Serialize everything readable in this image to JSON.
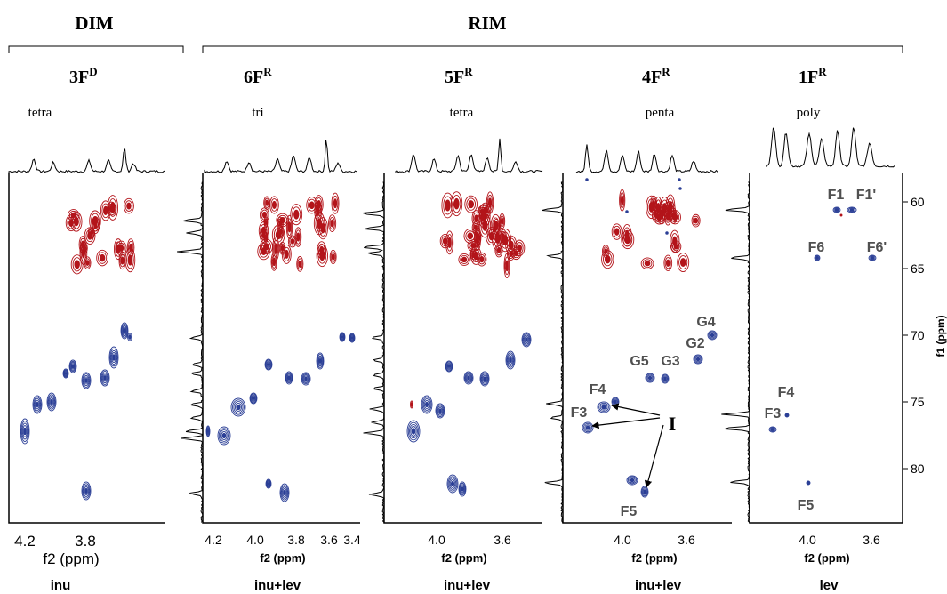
{
  "groups": {
    "dim": "DIM",
    "rim": "RIM"
  },
  "panels": [
    {
      "id": "3FD",
      "main": "3F",
      "sup": "D",
      "type": "tetra",
      "xlabel": "f2 (ppm)",
      "sample": "inu",
      "ticks": [
        "4.2",
        "3.8"
      ]
    },
    {
      "id": "6FR",
      "main": "6F",
      "sup": "R",
      "type": "tri",
      "xlabel": "f2 (ppm)",
      "sample": "inu+lev",
      "ticks": [
        "4.2",
        "4.0",
        "3.8",
        "3.6",
        "3.4"
      ]
    },
    {
      "id": "5FR",
      "main": "5F",
      "sup": "R",
      "type": "tetra",
      "xlabel": "f2 (ppm)",
      "sample": "inu+lev",
      "ticks": [
        "4.0",
        "3.6"
      ]
    },
    {
      "id": "4FR",
      "main": "4F",
      "sup": "R",
      "type": "penta",
      "xlabel": "f2 (ppm)",
      "sample": "inu+lev",
      "ticks": [
        "4.0",
        "3.6"
      ]
    },
    {
      "id": "1FR",
      "main": "1F",
      "sup": "R",
      "type": "poly",
      "xlabel": "f2 (ppm)",
      "sample": "lev",
      "ticks": [
        "4.0",
        "3.6"
      ]
    }
  ],
  "f1_axis": {
    "label": "f1 (ppm)",
    "ticks": [
      "60",
      "65",
      "70",
      "75",
      "80"
    ]
  },
  "annotations_4FR": [
    "G4",
    "G2",
    "G5",
    "G3",
    "F4",
    "F3",
    "F5"
  ],
  "annotations_1FR": [
    "F1",
    "F1'",
    "F6",
    "F6'",
    "F4",
    "F3",
    "F5"
  ],
  "arrow_label": "I",
  "colors": {
    "positive": "#b3141a",
    "negative": "#2b3f96",
    "axis": "#000000",
    "label": "#505050"
  }
}
